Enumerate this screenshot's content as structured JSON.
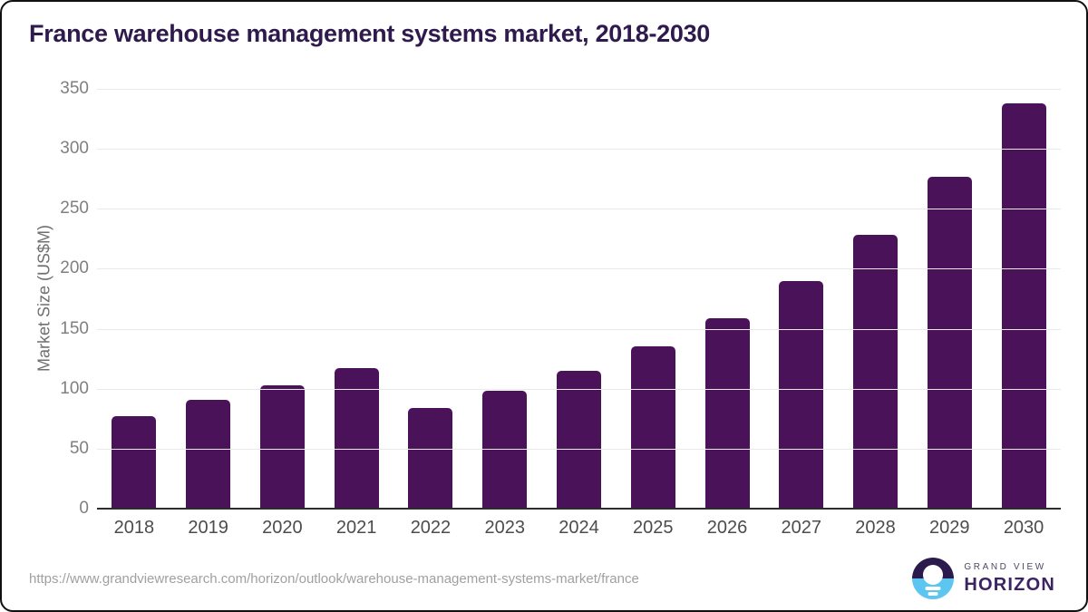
{
  "chart_data": {
    "type": "bar",
    "title": "France warehouse management systems market, 2018-2030",
    "categories": [
      "2018",
      "2019",
      "2020",
      "2021",
      "2022",
      "2023",
      "2024",
      "2025",
      "2026",
      "2027",
      "2028",
      "2029",
      "2030"
    ],
    "values": [
      77,
      91,
      103,
      117,
      84,
      98,
      115,
      135,
      159,
      190,
      228,
      277,
      338
    ],
    "xlabel": "",
    "ylabel": "Market Size (US$M)",
    "ylim": [
      0,
      350
    ],
    "ytick_step": 50,
    "grid": true,
    "legend": "none",
    "bar_color": "#4a1259"
  },
  "colors": {
    "title": "#2e1a4d",
    "bar": "#4a1259",
    "logo_purple": "#2b1b4d",
    "logo_blue": "#5cc6f1",
    "axis": "#2d2d2d",
    "gridline": "#e9e9e9"
  },
  "footer": {
    "source_url": "https://www.grandviewresearch.com/horizon/outlook/warehouse-management-systems-market/france",
    "logo": {
      "line1": "GRAND VIEW",
      "line2": "HORIZON"
    }
  }
}
